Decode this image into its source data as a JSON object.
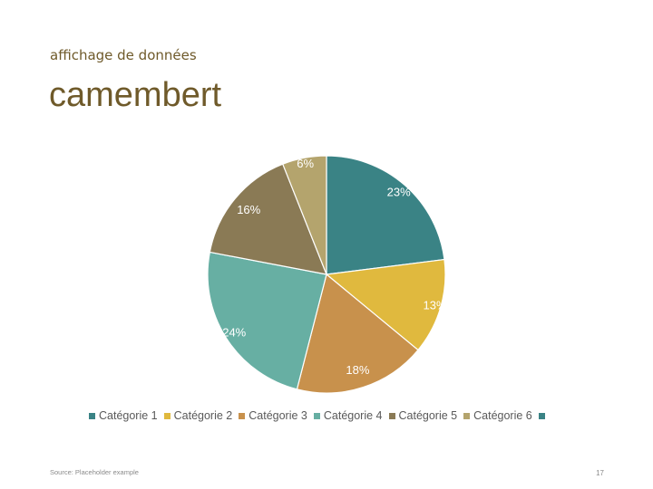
{
  "slide": {
    "eyebrow": "affichage de données",
    "title": "camembert",
    "source": "Source: Placeholder example",
    "page_number": "17"
  },
  "chart_data": {
    "type": "pie",
    "title": "",
    "categories": [
      "Catégorie 1",
      "Catégorie 2",
      "Catégorie 3",
      "Catégorie 4",
      "Catégorie 5",
      "Catégorie 6"
    ],
    "values": [
      23,
      13,
      18,
      24,
      16,
      6
    ],
    "labels": [
      "23%",
      "13%",
      "18%",
      "24%",
      "16%",
      "6%"
    ],
    "colors": [
      "#3a8385",
      "#e0b93e",
      "#c8914c",
      "#67afa3",
      "#8a7a55",
      "#b4a46d"
    ],
    "legend_placement": "bottom",
    "legend_extra_swatch_color": "#3a8385"
  }
}
